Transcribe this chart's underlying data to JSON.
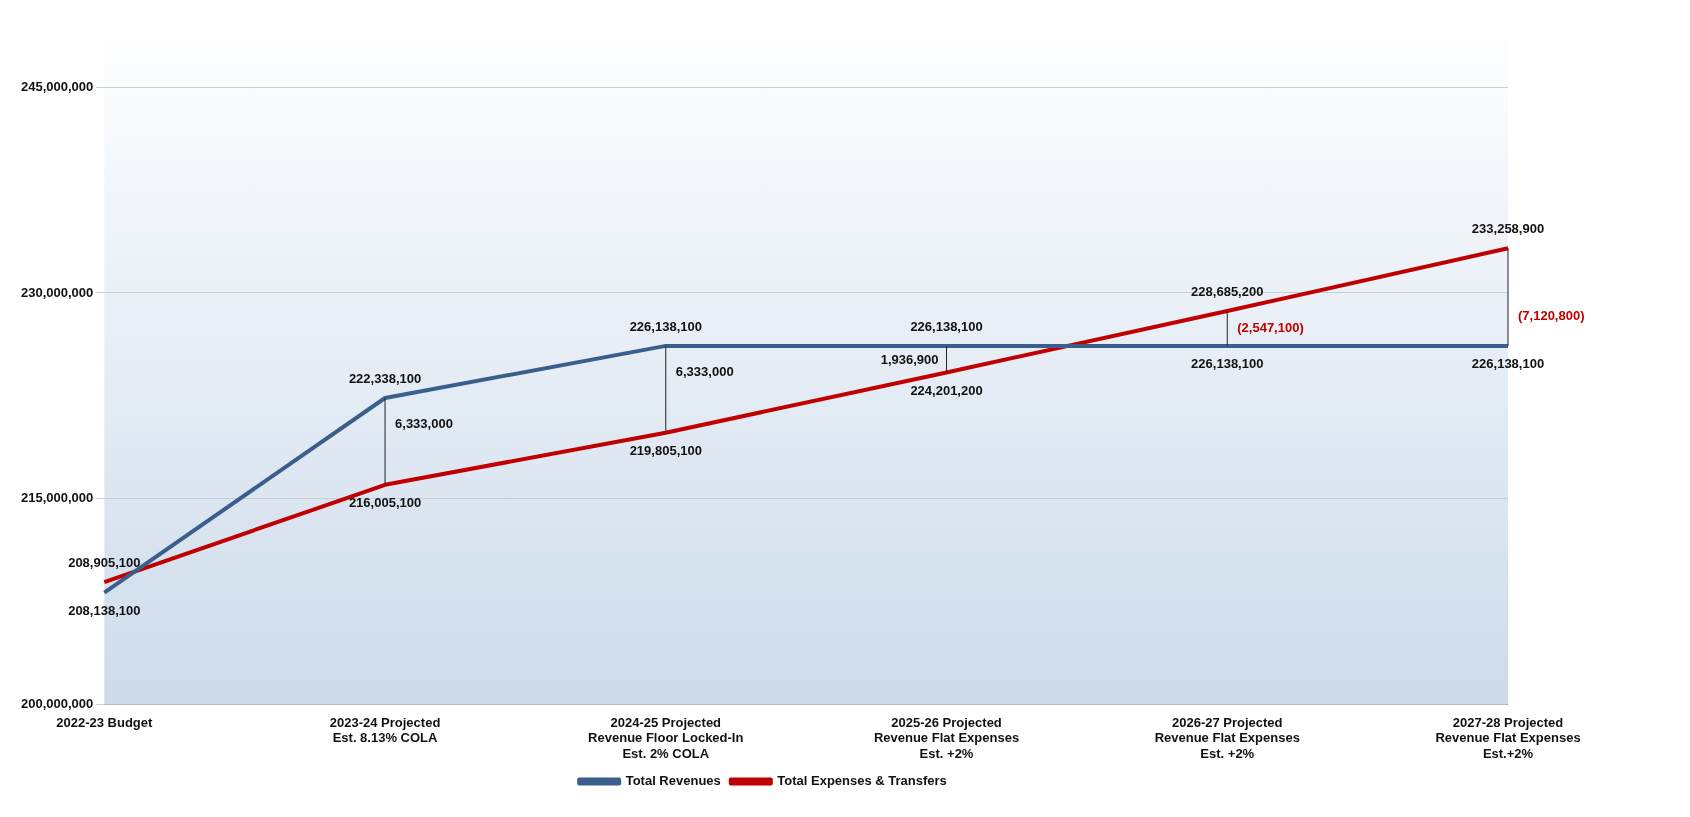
{
  "chart_data": {
    "type": "line",
    "categories": [
      "2022-23 Budget",
      "2023-24 Projected Est. 8.13% COLA",
      "2024-25 Projected Revenue Floor Locked-In Est. 2% COLA",
      "2025-26 Projected Revenue Flat Expenses Est. +2%",
      "2026-27 Projected Revenue Flat Expenses Est. +2%",
      "2027-28 Projected Revenue Flat Expenses Est.+2%"
    ],
    "series": [
      {
        "name": "Total Revenues",
        "color": "#3b5f8c",
        "values": [
          208138100,
          222338100,
          226138100,
          226138100,
          226138100,
          226138100
        ],
        "value_labels": [
          "208,138,100",
          "222,338,100",
          "226,138,100",
          "226,138,100",
          "226,138,100",
          "226,138,100"
        ]
      },
      {
        "name": "Total Expenses & Transfers",
        "color": "#c00000",
        "values": [
          208905100,
          216005100,
          219805100,
          224201200,
          228685200,
          233258900
        ],
        "value_labels": [
          "208,905,100",
          "216,005,100",
          "219,805,100",
          "224,201,200",
          "228,685,200",
          "233,258,900"
        ]
      }
    ],
    "ylim": [
      200000000,
      250000000
    ],
    "yticks": [
      {
        "value": 200000000,
        "label": "200,000,000"
      },
      {
        "value": 215000000,
        "label": "215,000,000"
      },
      {
        "value": 230000000,
        "label": "230,000,000"
      },
      {
        "value": 245000000,
        "label": "245,000,000"
      }
    ],
    "grid": "y",
    "legend": "bottom",
    "marker": "none",
    "annotations": [
      {
        "text": "6,333,000",
        "x": "2023-24 Projected Est. 8.13% COLA",
        "y": 222338100
      },
      {
        "text": "6,333,000",
        "x": "2024-25 Projected Revenue Floor Locked-In Est. 2% COLA",
        "y": 226138100
      },
      {
        "text": "1,936,900",
        "x": "2025-26 Projected Revenue Flat Expenses Est. +2%",
        "y": 226138100
      },
      {
        "text": "(2,547,100)",
        "x": "2026-27 Projected Revenue Flat Expenses Est. +2%",
        "y": 226138100
      },
      {
        "text": "(7,120,800)",
        "x": "2027-28 Projected Revenue Flat Expenses Est.+2%",
        "y": 226138100
      }
    ]
  }
}
